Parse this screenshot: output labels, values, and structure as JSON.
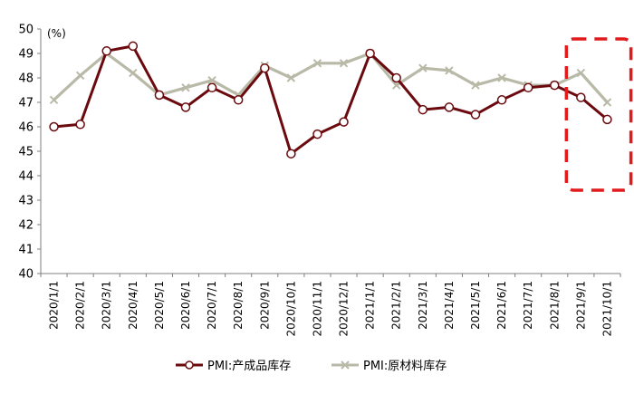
{
  "chart_data": {
    "type": "line",
    "unit_label": "(%)",
    "categories": [
      "2020/1/1",
      "2020/2/1",
      "2020/3/1",
      "2020/4/1",
      "2020/5/1",
      "2020/6/1",
      "2020/7/1",
      "2020/8/1",
      "2020/9/1",
      "2020/10/1",
      "2020/11/1",
      "2020/12/1",
      "2021/1/1",
      "2021/2/1",
      "2021/3/1",
      "2021/4/1",
      "2021/5/1",
      "2021/6/1",
      "2021/7/1",
      "2021/8/1",
      "2021/9/1",
      "2021/10/1"
    ],
    "ylim": [
      40,
      50
    ],
    "yticks": [
      40,
      41,
      42,
      43,
      44,
      45,
      46,
      47,
      48,
      49,
      50
    ],
    "grid": false,
    "legend_position": "bottom-center",
    "series": [
      {
        "name": "PMI:产成品库存",
        "color": "#6b0a0e",
        "marker": "hollow-circle",
        "values": [
          46.0,
          46.1,
          49.1,
          49.3,
          47.3,
          46.8,
          47.6,
          47.1,
          48.4,
          44.9,
          45.7,
          46.2,
          49.0,
          48.0,
          46.7,
          46.8,
          46.5,
          47.1,
          47.6,
          47.7,
          47.2,
          46.3
        ]
      },
      {
        "name": "PMI:原材料库存",
        "color": "#b9b9a8",
        "marker": "x",
        "values": [
          47.1,
          48.1,
          49.0,
          48.2,
          47.3,
          47.6,
          47.9,
          47.3,
          48.5,
          48.0,
          48.6,
          48.6,
          49.0,
          47.7,
          48.4,
          48.3,
          47.7,
          48.0,
          47.7,
          47.7,
          48.2,
          47.0
        ]
      }
    ],
    "highlight": {
      "shape": "dashed-rectangle",
      "color": "#e31a1c",
      "x_from": "2021/9/1",
      "x_to": "2021/10/1"
    }
  }
}
